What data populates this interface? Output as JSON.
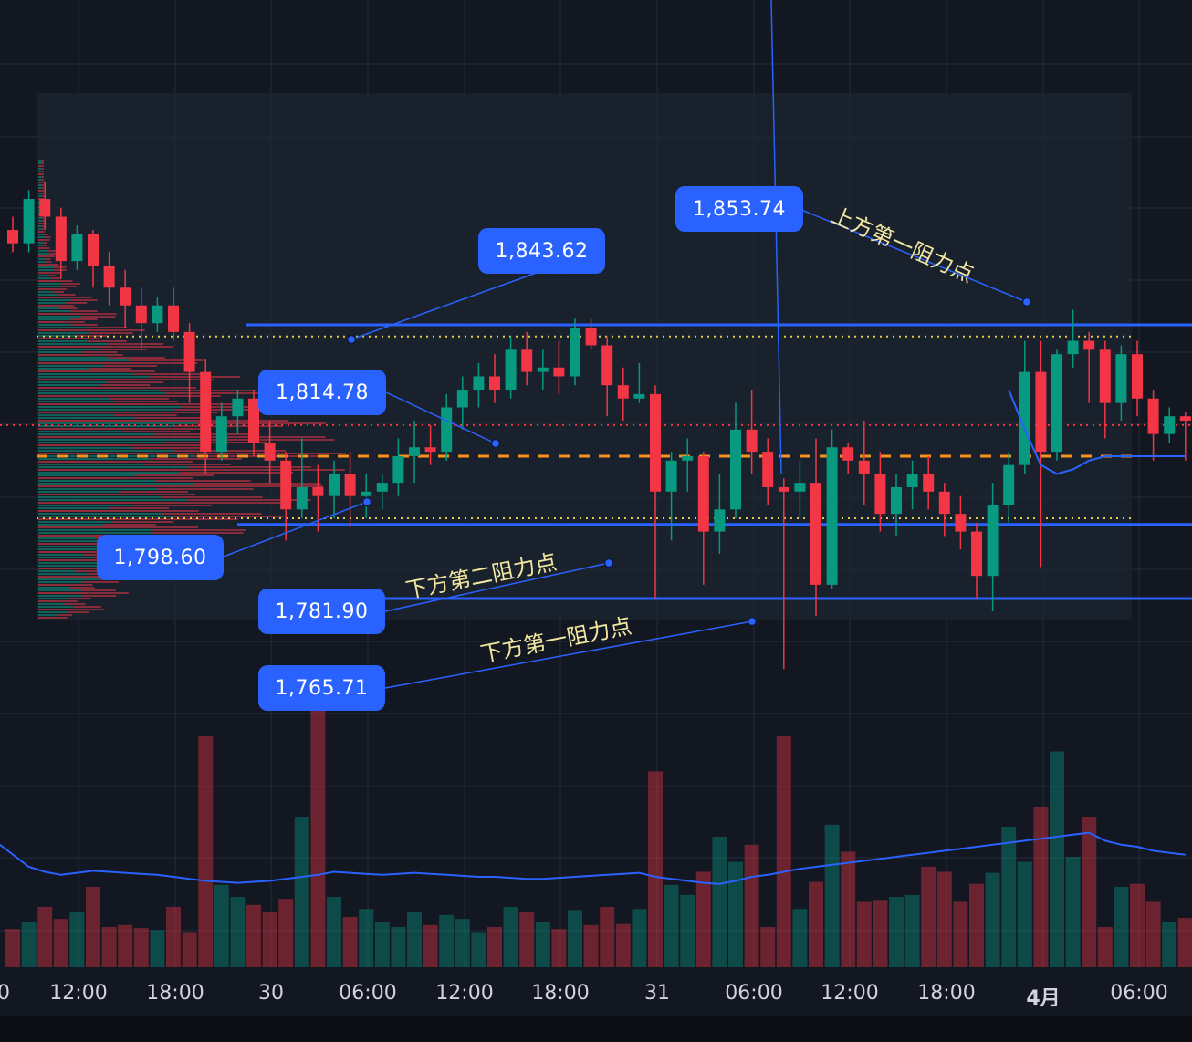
{
  "colors": {
    "background": "#131722",
    "grid": "#262b38",
    "up": "#089981",
    "down": "#f23645",
    "accent_blue": "#2962ff",
    "poc_orange": "#f7931a",
    "value_area_yellow": "#e6c84a",
    "label_text": "#ffffff",
    "note_text": "#f0e6a0"
  },
  "price_labels": [
    "1,843.62",
    "1,853.74",
    "1,814.78",
    "1,798.60",
    "1,781.90",
    "1,765.71"
  ],
  "annotations": [
    "上方第一阻力点",
    "下方第二阻力点",
    "下方第一阻力点"
  ],
  "x_axis_labels": [
    "0",
    "12:00",
    "18:00",
    "30",
    "06:00",
    "12:00",
    "18:00",
    "31",
    "06:00",
    "12:00",
    "18:00",
    "4月",
    "06:00"
  ],
  "chart_data": {
    "type": "candlestick",
    "interval_hours": 1,
    "ylim": [
      1755,
      1880
    ],
    "horizontal_levels": [
      {
        "price": 1843.62,
        "style": "solid",
        "color": "#2962ff"
      },
      {
        "price": 1798.6,
        "style": "solid",
        "color": "#2962ff"
      },
      {
        "price": 1781.9,
        "style": "solid",
        "color": "#2962ff"
      },
      {
        "price": 1814.0,
        "style": "dashed",
        "color": "#f7931a"
      },
      {
        "price": 1841.0,
        "style": "dotted",
        "color": "#e6c84a"
      },
      {
        "price": 1800.0,
        "style": "dotted",
        "color": "#e6c84a"
      },
      {
        "price": 1821.0,
        "style": "dotted",
        "color": "#f23645"
      }
    ],
    "candles": [
      [
        1865,
        1868,
        1860,
        1862
      ],
      [
        1862,
        1874,
        1860,
        1872
      ],
      [
        1872,
        1876,
        1865,
        1868
      ],
      [
        1868,
        1870,
        1854,
        1858
      ],
      [
        1858,
        1866,
        1856,
        1864
      ],
      [
        1864,
        1865,
        1852,
        1857
      ],
      [
        1857,
        1860,
        1848,
        1852
      ],
      [
        1852,
        1856,
        1843,
        1848
      ],
      [
        1848,
        1852,
        1838,
        1844
      ],
      [
        1844,
        1850,
        1842,
        1848
      ],
      [
        1848,
        1852,
        1840,
        1842
      ],
      [
        1842,
        1844,
        1826,
        1833
      ],
      [
        1833,
        1836,
        1810,
        1815
      ],
      [
        1815,
        1826,
        1813,
        1823
      ],
      [
        1823,
        1829,
        1819,
        1827
      ],
      [
        1827,
        1829,
        1814,
        1817
      ],
      [
        1817,
        1822,
        1808,
        1813
      ],
      [
        1813,
        1815,
        1795,
        1802
      ],
      [
        1802,
        1818,
        1800,
        1807
      ],
      [
        1807,
        1812,
        1797,
        1805
      ],
      [
        1805,
        1813,
        1800,
        1810
      ],
      [
        1810,
        1815,
        1798,
        1805
      ],
      [
        1805,
        1810,
        1800,
        1806
      ],
      [
        1806,
        1810,
        1802,
        1808
      ],
      [
        1808,
        1818,
        1805,
        1814
      ],
      [
        1814,
        1822,
        1808,
        1816
      ],
      [
        1816,
        1821,
        1812,
        1815
      ],
      [
        1815,
        1828,
        1813,
        1825
      ],
      [
        1825,
        1832,
        1820,
        1829
      ],
      [
        1829,
        1835,
        1825,
        1832
      ],
      [
        1832,
        1837,
        1826,
        1829
      ],
      [
        1829,
        1841,
        1827,
        1838
      ],
      [
        1838,
        1842,
        1830,
        1833
      ],
      [
        1833,
        1838,
        1829,
        1834
      ],
      [
        1834,
        1840,
        1828,
        1832
      ],
      [
        1832,
        1845,
        1830,
        1843
      ],
      [
        1843,
        1845,
        1838,
        1839
      ],
      [
        1839,
        1841,
        1823,
        1830
      ],
      [
        1830,
        1834,
        1822,
        1827
      ],
      [
        1827,
        1835,
        1826,
        1828
      ],
      [
        1828,
        1830,
        1782,
        1806
      ],
      [
        1806,
        1815,
        1795,
        1813
      ],
      [
        1813,
        1818,
        1806,
        1814
      ],
      [
        1814,
        1815,
        1785,
        1797
      ],
      [
        1797,
        1810,
        1792,
        1802
      ],
      [
        1802,
        1826,
        1800,
        1820
      ],
      [
        1820,
        1829,
        1810,
        1815
      ],
      [
        1815,
        1818,
        1803,
        1807
      ],
      [
        1807,
        1809,
        1766,
        1806
      ],
      [
        1806,
        1813,
        1800,
        1808
      ],
      [
        1808,
        1818,
        1778,
        1785
      ],
      [
        1785,
        1820,
        1784,
        1816
      ],
      [
        1816,
        1817,
        1810,
        1813
      ],
      [
        1813,
        1822,
        1803,
        1810
      ],
      [
        1810,
        1815,
        1797,
        1801
      ],
      [
        1801,
        1810,
        1796,
        1807
      ],
      [
        1807,
        1813,
        1802,
        1810
      ],
      [
        1810,
        1814,
        1802,
        1806
      ],
      [
        1806,
        1808,
        1796,
        1801
      ],
      [
        1801,
        1805,
        1793,
        1797
      ],
      [
        1797,
        1799,
        1782,
        1787
      ],
      [
        1787,
        1808,
        1779,
        1803
      ],
      [
        1803,
        1815,
        1799,
        1812
      ],
      [
        1812,
        1840,
        1810,
        1833
      ],
      [
        1833,
        1840,
        1789,
        1815
      ],
      [
        1815,
        1838,
        1813,
        1837
      ],
      [
        1837,
        1847,
        1834,
        1840
      ],
      [
        1840,
        1842,
        1826,
        1838
      ],
      [
        1838,
        1840,
        1818,
        1826
      ],
      [
        1826,
        1839,
        1822,
        1837
      ],
      [
        1837,
        1840,
        1823,
        1827
      ],
      [
        1827,
        1829,
        1813,
        1819
      ],
      [
        1819,
        1825,
        1817,
        1823
      ],
      [
        1823,
        1824,
        1813,
        1822
      ]
    ],
    "moving_average": [
      [
        62,
        1829
      ],
      [
        63,
        1820
      ],
      [
        64,
        1812
      ],
      [
        65,
        1810
      ],
      [
        66,
        1811
      ],
      [
        67,
        1813
      ],
      [
        68,
        1814
      ],
      [
        69,
        1814
      ],
      [
        70,
        1814
      ],
      [
        71,
        1814
      ],
      [
        72,
        1814
      ],
      [
        73,
        1814
      ]
    ],
    "volume": [
      {
        "values": [
          38,
          45,
          60,
          48,
          55,
          80,
          40,
          42,
          39,
          37,
          60,
          35,
          230,
          82,
          70,
          62,
          55,
          68,
          150,
          260,
          70,
          50,
          58,
          45,
          40,
          55,
          42,
          52,
          48,
          35,
          40,
          60,
          55,
          45,
          38,
          57,
          42,
          60,
          43,
          58,
          195,
          82,
          72,
          95,
          130,
          105,
          122,
          40,
          230,
          58,
          85,
          142,
          115,
          65,
          67,
          70,
          72,
          100,
          95,
          65,
          83,
          94,
          140,
          105,
          160,
          215,
          110,
          150,
          40,
          80,
          83,
          65,
          45,
          49
        ],
        "ma": [
          122,
          100,
          95,
          92,
          94,
          96,
          95,
          94,
          93,
          92,
          90,
          88,
          86,
          85,
          84,
          85,
          86,
          88,
          90,
          92,
          95,
          94,
          93,
          92,
          93,
          94,
          93,
          92,
          91,
          90,
          90,
          89,
          88,
          88,
          89,
          90,
          91,
          92,
          93,
          94,
          90,
          88,
          86,
          84,
          83,
          86,
          90,
          92,
          95,
          98,
          100,
          102,
          104,
          106,
          108,
          110,
          112,
          114,
          116,
          118,
          120,
          122,
          124,
          126,
          128,
          130,
          132,
          134,
          126,
          122,
          120,
          116,
          114,
          112
        ]
      }
    ]
  }
}
